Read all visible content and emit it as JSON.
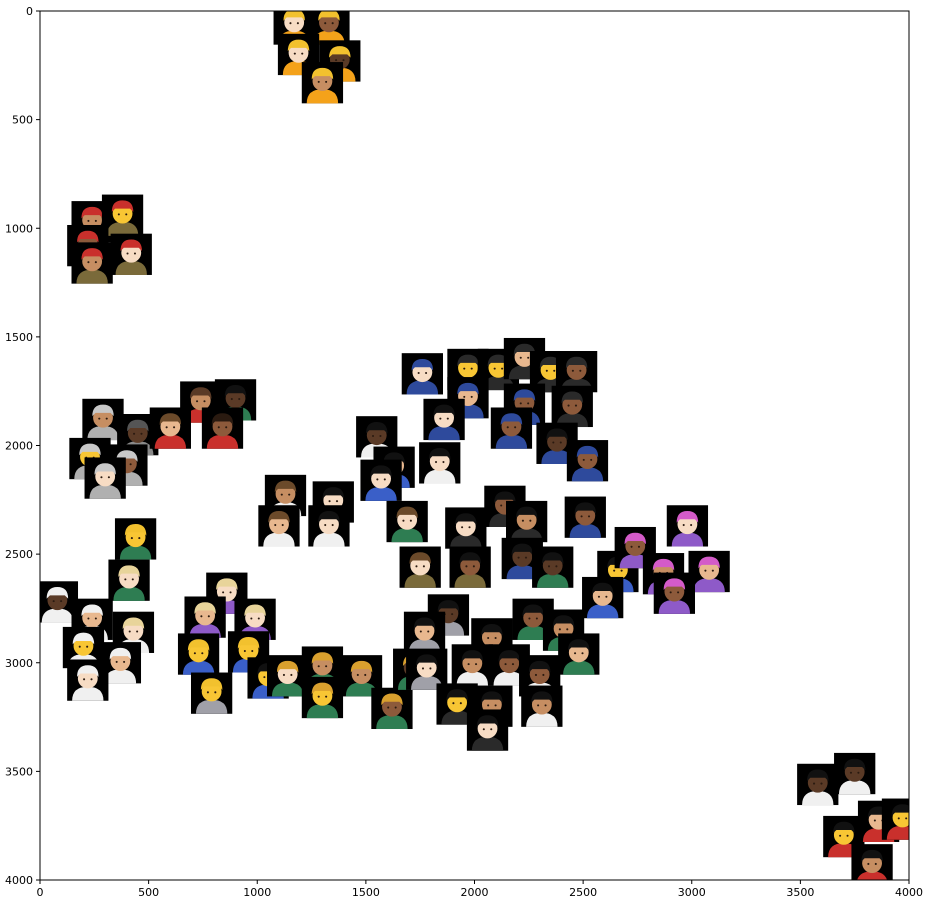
{
  "chart_data": {
    "type": "scatter",
    "title": "",
    "xlabel": "",
    "ylabel": "",
    "xlim": [
      0,
      4000
    ],
    "ylim": [
      4000,
      0
    ],
    "y_inverted": true,
    "grid": false,
    "legend": "none",
    "x_ticks": [
      0,
      500,
      1000,
      1500,
      2000,
      2500,
      3000,
      3500,
      4000
    ],
    "y_ticks": [
      0,
      500,
      1000,
      1500,
      2000,
      2500,
      3000,
      3500,
      4000
    ],
    "x_tick_labels": [
      "0",
      "500",
      "1000",
      "1500",
      "2000",
      "2500",
      "3000",
      "3500",
      "4000"
    ],
    "y_tick_labels": [
      "0",
      "500",
      "1000",
      "1500",
      "2000",
      "2500",
      "3000",
      "3500",
      "4000"
    ],
    "marker_size": 190,
    "skin_tones": {
      "light": "#F7DCC4",
      "medium_light": "#E8B88F",
      "medium": "#C68E62",
      "medium_dark": "#8D5A3B",
      "dark": "#5A3A26",
      "yellow": "#F8C634"
    },
    "points": [
      {
        "x": 1170,
        "y": 60,
        "hat": "#F2C12E",
        "skin": "#F7DCC4",
        "body": "#F4A21A"
      },
      {
        "x": 1330,
        "y": 60,
        "hat": "#F2C12E",
        "skin": "#8D5A3B",
        "body": "#F4A21A"
      },
      {
        "x": 1190,
        "y": 200,
        "hat": "#F2C12E",
        "skin": "#F7DCC4",
        "body": "#F4A21A"
      },
      {
        "x": 1380,
        "y": 230,
        "hat": "#F2C12E",
        "skin": "#5A3A26",
        "body": "#F4A21A"
      },
      {
        "x": 1300,
        "y": 330,
        "hat": "#F2C12E",
        "skin": "#C68E62",
        "body": "#F4A21A"
      },
      {
        "x": 240,
        "y": 970,
        "hat": "#C9302C",
        "skin": "#C68E62",
        "body": "#7A6A3A"
      },
      {
        "x": 380,
        "y": 940,
        "hat": "#C9302C",
        "skin": "#F8C634",
        "body": "#7A6A3A"
      },
      {
        "x": 220,
        "y": 1080,
        "hat": "#C9302C",
        "skin": "#8D5A3B",
        "body": "#7A6A3A"
      },
      {
        "x": 420,
        "y": 1120,
        "hat": "#C9302C",
        "skin": "#F7DCC4",
        "body": "#7A6A3A"
      },
      {
        "x": 240,
        "y": 1160,
        "hat": "#C9302C",
        "skin": "#C68E62",
        "body": "#7A6A3A"
      },
      {
        "x": 290,
        "y": 1880,
        "hat": "#C8C8C8",
        "skin": "#C68E62",
        "body": "#B0B0B0"
      },
      {
        "x": 450,
        "y": 1950,
        "hat": "#555555",
        "skin": "#5A3A26",
        "body": "#8A8A8A"
      },
      {
        "x": 230,
        "y": 2060,
        "hat": "#C8C8C8",
        "skin": "#F8C634",
        "body": "#B0B0B0"
      },
      {
        "x": 400,
        "y": 2090,
        "hat": "#C8C8C8",
        "skin": "#8D5A3B",
        "body": "#B0B0B0"
      },
      {
        "x": 300,
        "y": 2150,
        "hat": "#C8C8C8",
        "skin": "#F7DCC4",
        "body": "#B0B0B0"
      },
      {
        "x": 740,
        "y": 1800,
        "hat": "#5A3A26",
        "skin": "#C68E62",
        "body": "#C9302C"
      },
      {
        "x": 900,
        "y": 1790,
        "hat": "#111111",
        "skin": "#5A3A26",
        "body": "#2E7D52"
      },
      {
        "x": 600,
        "y": 1920,
        "hat": "#6B4A2A",
        "skin": "#E8B88F",
        "body": "#C9302C"
      },
      {
        "x": 840,
        "y": 1920,
        "hat": "#2A1A10",
        "skin": "#8D5A3B",
        "body": "#C9302C"
      },
      {
        "x": 440,
        "y": 2430,
        "hat": "#F2C12E",
        "skin": "#F8C634",
        "body": "#2E7D52"
      },
      {
        "x": 410,
        "y": 2620,
        "hat": "#E8D49A",
        "skin": "#F7DCC4",
        "body": "#2E7D52"
      },
      {
        "x": 80,
        "y": 2720,
        "hat": "#F0F0F0",
        "skin": "#5A3A26",
        "body": "#F0F0F0"
      },
      {
        "x": 240,
        "y": 2800,
        "hat": "#F0F0F0",
        "skin": "#E8B88F",
        "body": "#F0F0F0"
      },
      {
        "x": 430,
        "y": 2860,
        "hat": "#E8D49A",
        "skin": "#F7DCC4",
        "body": "#F0F0F0"
      },
      {
        "x": 200,
        "y": 2930,
        "hat": "#F0F0F0",
        "skin": "#F8C634",
        "body": "#F0F0F0"
      },
      {
        "x": 370,
        "y": 3000,
        "hat": "#F0F0F0",
        "skin": "#E8B88F",
        "body": "#F0F0F0"
      },
      {
        "x": 220,
        "y": 3080,
        "hat": "#F0F0F0",
        "skin": "#F7DCC4",
        "body": "#F0F0F0"
      },
      {
        "x": 860,
        "y": 2680,
        "hat": "#E8D49A",
        "skin": "#F7DCC4",
        "body": "#8E5AC8"
      },
      {
        "x": 760,
        "y": 2790,
        "hat": "#E8D49A",
        "skin": "#E8B88F",
        "body": "#8E5AC8"
      },
      {
        "x": 990,
        "y": 2800,
        "hat": "#E8D49A",
        "skin": "#F7DCC4",
        "body": "#8E5AC8"
      },
      {
        "x": 730,
        "y": 2960,
        "hat": "#F2C12E",
        "skin": "#F8C634",
        "body": "#3A5FC8"
      },
      {
        "x": 960,
        "y": 2950,
        "hat": "#F2C12E",
        "skin": "#F8C634",
        "body": "#3A5FC8"
      },
      {
        "x": 790,
        "y": 3140,
        "hat": "#F2C12E",
        "skin": "#F8C634",
        "body": "#A0A0A8"
      },
      {
        "x": 1050,
        "y": 3070,
        "hat": "#111111",
        "skin": "#F8C634",
        "body": "#3A5FC8"
      },
      {
        "x": 1130,
        "y": 2230,
        "hat": "#6B4A2A",
        "skin": "#C68E62",
        "body": "#F0F0F0"
      },
      {
        "x": 1350,
        "y": 2260,
        "hat": "#111111",
        "skin": "#F7DCC4",
        "body": "#F0F0F0"
      },
      {
        "x": 1100,
        "y": 2370,
        "hat": "#6B4A2A",
        "skin": "#E8B88F",
        "body": "#F0F0F0"
      },
      {
        "x": 1330,
        "y": 2370,
        "hat": "#111111",
        "skin": "#F7DCC4",
        "body": "#F0F0F0"
      },
      {
        "x": 1140,
        "y": 3060,
        "hat": "#D9A02E",
        "skin": "#F7DCC4",
        "body": "#2E7D52"
      },
      {
        "x": 1300,
        "y": 3020,
        "hat": "#D9A02E",
        "skin": "#C68E62",
        "body": "#2E7D52"
      },
      {
        "x": 1480,
        "y": 3060,
        "hat": "#D9A02E",
        "skin": "#C68E62",
        "body": "#2E7D52"
      },
      {
        "x": 1300,
        "y": 3160,
        "hat": "#D9A02E",
        "skin": "#F8C634",
        "body": "#2E7D52"
      },
      {
        "x": 1620,
        "y": 3210,
        "hat": "#D9A02E",
        "skin": "#8D5A3B",
        "body": "#2E7D52"
      },
      {
        "x": 1720,
        "y": 3030,
        "hat": "#D9A02E",
        "skin": "#5A3A26",
        "body": "#2E7D52"
      },
      {
        "x": 1760,
        "y": 1670,
        "hat": "#2E4A9C",
        "skin": "#F7DCC4",
        "body": "#2E4A9C"
      },
      {
        "x": 1970,
        "y": 1650,
        "hat": "#2A2A2A",
        "skin": "#F8C634",
        "body": "#2A2A2A"
      },
      {
        "x": 2110,
        "y": 1650,
        "hat": "#2A2A2A",
        "skin": "#F8C634",
        "body": "#2A2A2A"
      },
      {
        "x": 2230,
        "y": 1600,
        "hat": "#2A2A2A",
        "skin": "#E8B88F",
        "body": "#2A2A2A"
      },
      {
        "x": 2350,
        "y": 1660,
        "hat": "#2A2A2A",
        "skin": "#F8C634",
        "body": "#2A2A2A"
      },
      {
        "x": 2470,
        "y": 1660,
        "hat": "#2A2A2A",
        "skin": "#8D5A3B",
        "body": "#2A2A2A"
      },
      {
        "x": 1970,
        "y": 1780,
        "hat": "#2E4A9C",
        "skin": "#E8B88F",
        "body": "#2E4A9C"
      },
      {
        "x": 2230,
        "y": 1810,
        "hat": "#2E4A9C",
        "skin": "#8D5A3B",
        "body": "#2E4A9C"
      },
      {
        "x": 2450,
        "y": 1820,
        "hat": "#2A2A2A",
        "skin": "#8D5A3B",
        "body": "#2A2A2A"
      },
      {
        "x": 1860,
        "y": 1880,
        "hat": "#111111",
        "skin": "#F7DCC4",
        "body": "#2E4A9C"
      },
      {
        "x": 2170,
        "y": 1920,
        "hat": "#2E4A9C",
        "skin": "#8D5A3B",
        "body": "#2E4A9C"
      },
      {
        "x": 2380,
        "y": 1990,
        "hat": "#111111",
        "skin": "#5A3A26",
        "body": "#2E4A9C"
      },
      {
        "x": 2520,
        "y": 2070,
        "hat": "#2E4A9C",
        "skin": "#8D5A3B",
        "body": "#2E4A9C"
      },
      {
        "x": 1550,
        "y": 1960,
        "hat": "#111111",
        "skin": "#5A3A26",
        "body": "#F0F0F0"
      },
      {
        "x": 1630,
        "y": 2100,
        "hat": "#111111",
        "skin": "#E8B88F",
        "body": "#3A5FC8"
      },
      {
        "x": 1570,
        "y": 2160,
        "hat": "#111111",
        "skin": "#F7DCC4",
        "body": "#3A5FC8"
      },
      {
        "x": 1840,
        "y": 2080,
        "hat": "#111111",
        "skin": "#F7DCC4",
        "body": "#F0F0F0"
      },
      {
        "x": 1690,
        "y": 2350,
        "hat": "#6B4A2A",
        "skin": "#F7DCC4",
        "body": "#2E7D52"
      },
      {
        "x": 1960,
        "y": 2380,
        "hat": "#111111",
        "skin": "#F7DCC4",
        "body": "#2A2A2A"
      },
      {
        "x": 2140,
        "y": 2280,
        "hat": "#111111",
        "skin": "#8D5A3B",
        "body": "#2A2A2A"
      },
      {
        "x": 2240,
        "y": 2350,
        "hat": "#111111",
        "skin": "#C68E62",
        "body": "#2A2A2A"
      },
      {
        "x": 2510,
        "y": 2330,
        "hat": "#111111",
        "skin": "#8D5A3B",
        "body": "#2E4A9C"
      },
      {
        "x": 1750,
        "y": 2560,
        "hat": "#6B4A2A",
        "skin": "#F7DCC4",
        "body": "#7A6A3A"
      },
      {
        "x": 1980,
        "y": 2560,
        "hat": "#111111",
        "skin": "#8D5A3B",
        "body": "#7A6A3A"
      },
      {
        "x": 2220,
        "y": 2520,
        "hat": "#111111",
        "skin": "#5A3A26",
        "body": "#2E4A9C"
      },
      {
        "x": 2360,
        "y": 2560,
        "hat": "#111111",
        "skin": "#5A3A26",
        "body": "#2E7D52"
      },
      {
        "x": 2660,
        "y": 2580,
        "hat": "#111111",
        "skin": "#F8C634",
        "body": "#3A5FC8"
      },
      {
        "x": 2590,
        "y": 2700,
        "hat": "#111111",
        "skin": "#E8B88F",
        "body": "#3A5FC8"
      },
      {
        "x": 1880,
        "y": 2780,
        "hat": "#111111",
        "skin": "#5A3A26",
        "body": "#A0A0A8"
      },
      {
        "x": 1770,
        "y": 2860,
        "hat": "#111111",
        "skin": "#E8B88F",
        "body": "#A0A0A8"
      },
      {
        "x": 2080,
        "y": 2890,
        "hat": "#111111",
        "skin": "#C68E62",
        "body": "#F0F0F0"
      },
      {
        "x": 2270,
        "y": 2800,
        "hat": "#111111",
        "skin": "#8D5A3B",
        "body": "#2E7D52"
      },
      {
        "x": 2410,
        "y": 2850,
        "hat": "#111111",
        "skin": "#C68E62",
        "body": "#2E7D52"
      },
      {
        "x": 1780,
        "y": 3030,
        "hat": "#111111",
        "skin": "#F7DCC4",
        "body": "#A0A0A8"
      },
      {
        "x": 1990,
        "y": 3010,
        "hat": "#111111",
        "skin": "#C68E62",
        "body": "#F0F0F0"
      },
      {
        "x": 2160,
        "y": 3010,
        "hat": "#111111",
        "skin": "#8D5A3B",
        "body": "#F0F0F0"
      },
      {
        "x": 2300,
        "y": 3060,
        "hat": "#111111",
        "skin": "#8D5A3B",
        "body": "#F0F0F0"
      },
      {
        "x": 2480,
        "y": 2960,
        "hat": "#111111",
        "skin": "#E8B88F",
        "body": "#2E7D52"
      },
      {
        "x": 1920,
        "y": 3190,
        "hat": "#111111",
        "skin": "#F8C634",
        "body": "#2A2A2A"
      },
      {
        "x": 2080,
        "y": 3200,
        "hat": "#111111",
        "skin": "#C68E62",
        "body": "#F0F0F0"
      },
      {
        "x": 2310,
        "y": 3200,
        "hat": "#111111",
        "skin": "#C68E62",
        "body": "#F0F0F0"
      },
      {
        "x": 2060,
        "y": 3310,
        "hat": "#111111",
        "skin": "#F7DCC4",
        "body": "#2A2A2A"
      },
      {
        "x": 2740,
        "y": 2470,
        "hat": "#D45BC9",
        "skin": "#8D5A3B",
        "body": "#8E5AC8"
      },
      {
        "x": 2980,
        "y": 2370,
        "hat": "#D45BC9",
        "skin": "#F7DCC4",
        "body": "#8E5AC8"
      },
      {
        "x": 2870,
        "y": 2590,
        "hat": "#D45BC9",
        "skin": "#C68E62",
        "body": "#8E5AC8"
      },
      {
        "x": 3080,
        "y": 2580,
        "hat": "#D45BC9",
        "skin": "#E8B88F",
        "body": "#8E5AC8"
      },
      {
        "x": 2920,
        "y": 2680,
        "hat": "#D45BC9",
        "skin": "#8D5A3B",
        "body": "#8E5AC8"
      },
      {
        "x": 3580,
        "y": 3560,
        "hat": "#111111",
        "skin": "#5A3A26",
        "body": "#F0F0F0"
      },
      {
        "x": 3750,
        "y": 3510,
        "hat": "#111111",
        "skin": "#5A3A26",
        "body": "#F0F0F0"
      },
      {
        "x": 3700,
        "y": 3800,
        "hat": "#111111",
        "skin": "#F8C634",
        "body": "#C9302C"
      },
      {
        "x": 3860,
        "y": 3730,
        "hat": "#111111",
        "skin": "#E8B88F",
        "body": "#C9302C"
      },
      {
        "x": 3970,
        "y": 3720,
        "hat": "#111111",
        "skin": "#F8C634",
        "body": "#C9302C"
      },
      {
        "x": 3830,
        "y": 3930,
        "hat": "#111111",
        "skin": "#C68E62",
        "body": "#C9302C"
      }
    ]
  }
}
